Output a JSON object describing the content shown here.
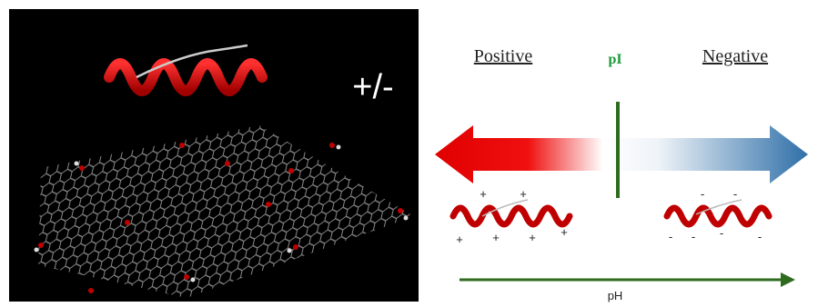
{
  "left_panel": {
    "charge_label": "+/-"
  },
  "right_panel": {
    "positive_label": "Positive",
    "pi_label": "pI",
    "negative_label": "Negative",
    "axis_label": "pH",
    "positive_charges": [
      "+",
      "+",
      "+",
      "+",
      "+",
      "+"
    ],
    "negative_charges": [
      "-",
      "-",
      "-",
      "-",
      "-",
      "-"
    ]
  }
}
